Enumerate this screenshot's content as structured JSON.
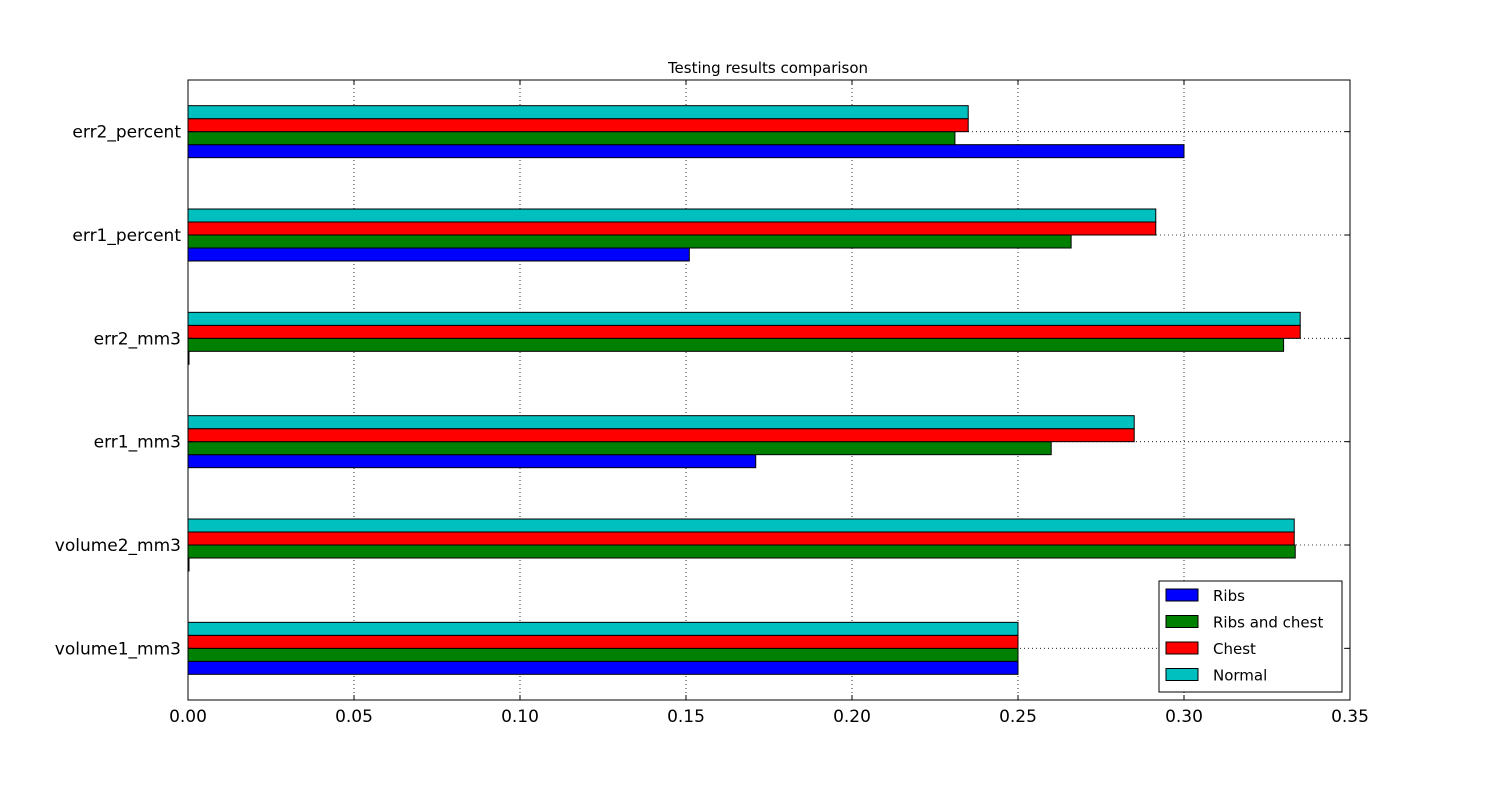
{
  "chart_data": {
    "type": "bar",
    "orientation": "horizontal",
    "title": "Testing results comparison",
    "categories": [
      "volume1_mm3",
      "volume2_mm3",
      "err1_mm3",
      "err2_mm3",
      "err1_percent",
      "err2_percent"
    ],
    "series": [
      {
        "name": "Ribs",
        "color": "#0000ff",
        "values": [
          0.25,
          0.0003,
          0.171,
          0.0003,
          0.151,
          0.3
        ]
      },
      {
        "name": "Ribs and chest",
        "color": "#008000",
        "values": [
          0.25,
          0.3335,
          0.26,
          0.33,
          0.266,
          0.231
        ]
      },
      {
        "name": "Chest",
        "color": "#ff0000",
        "values": [
          0.25,
          0.3332,
          0.285,
          0.335,
          0.2915,
          0.235
        ]
      },
      {
        "name": "Normal",
        "color": "#00bfbf",
        "values": [
          0.25,
          0.3332,
          0.285,
          0.335,
          0.2915,
          0.235
        ]
      }
    ],
    "xlim": [
      0,
      0.35
    ],
    "xticks": [
      "0.00",
      "0.05",
      "0.10",
      "0.15",
      "0.20",
      "0.25",
      "0.30",
      "0.35"
    ],
    "grid": true,
    "legend_position": "lower-right"
  }
}
